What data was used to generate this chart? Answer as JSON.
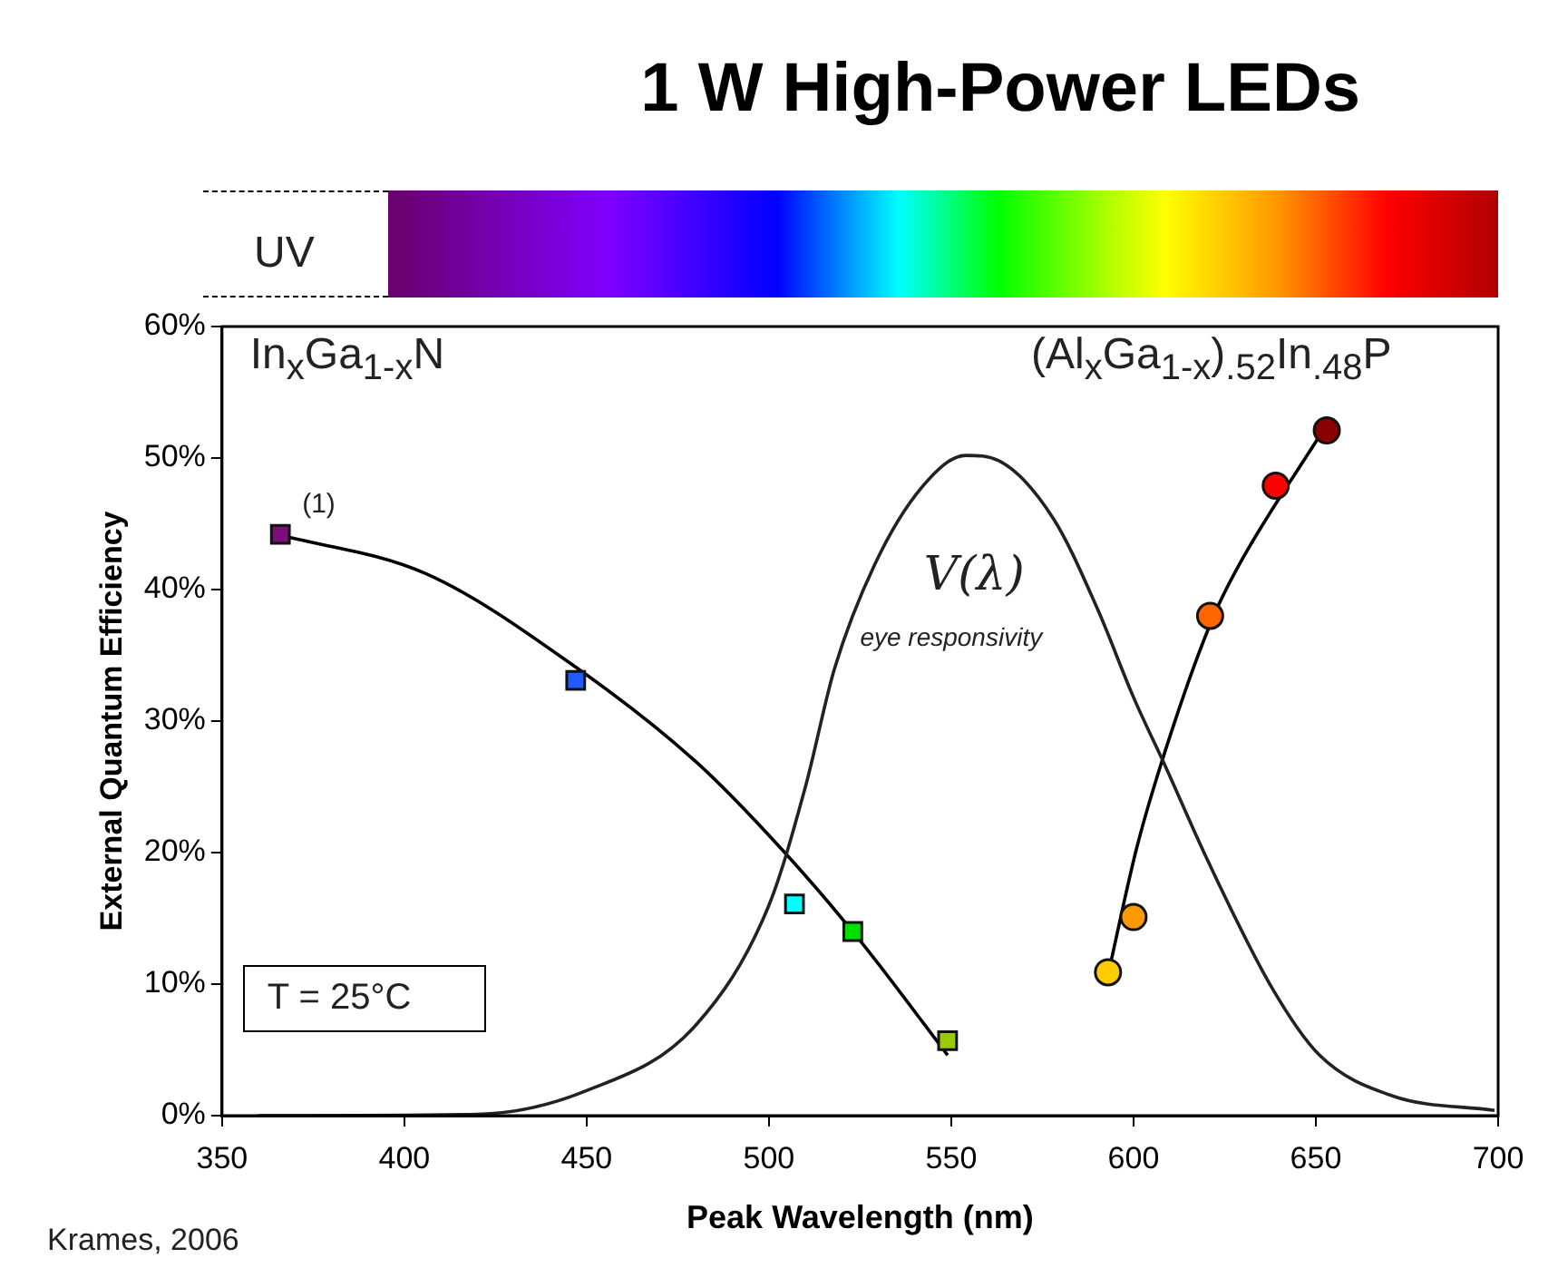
{
  "chart_data": {
    "type": "scatter",
    "title": "1 W High-Power LEDs",
    "xlabel": "Peak Wavelength (nm)",
    "ylabel": "External Quantum Efficiency",
    "xlim": [
      350,
      700
    ],
    "xticks": [
      350,
      400,
      450,
      500,
      550,
      600,
      650,
      700
    ],
    "ylim": [
      0,
      60
    ],
    "yticks": [
      {
        "value": 0,
        "label": "0%"
      },
      {
        "value": 10,
        "label": "10%"
      },
      {
        "value": 20,
        "label": "20%"
      },
      {
        "value": 30,
        "label": "30%"
      },
      {
        "value": 40,
        "label": "40%"
      },
      {
        "value": 50,
        "label": "50%"
      },
      {
        "value": 60,
        "label": "60%"
      }
    ],
    "grid": false,
    "legend": false,
    "series": [
      {
        "type": "line",
        "marker": "none",
        "color": "#222222",
        "x": [
          360,
          420,
          450,
          480,
          500,
          510,
          518,
          529,
          542,
          554,
          563,
          578,
          590,
          600,
          609,
          620,
          638,
          651,
          671,
          699
        ],
        "values": [
          0,
          0.1,
          1.9,
          6.9,
          16,
          25,
          34,
          41.9,
          47.8,
          50.2,
          49.8,
          45.4,
          38.6,
          31.8,
          26.4,
          19.6,
          9.7,
          4.6,
          1.5,
          0.4
        ]
      },
      {
        "type": "line",
        "marker": "none",
        "color": "#000000",
        "x": [
          365,
          406,
          447,
          480,
          504,
          525,
          549
        ],
        "values": [
          44.2,
          41.2,
          34.1,
          26.9,
          20.1,
          13.3,
          4.6
        ]
      },
      {
        "type": "line",
        "marker": "none",
        "color": "#000000",
        "x": [
          593,
          601,
          611,
          622,
          630,
          652
        ],
        "values": [
          10.7,
          20.5,
          29.7,
          38,
          42.4,
          52.1
        ]
      },
      {
        "type": "scatter",
        "marker": "square",
        "colors": [
          "#7a0f7a",
          "#1f5bff",
          "#00ffff",
          "#00e000",
          "#99cc00"
        ],
        "x": [
          366,
          447,
          507,
          523,
          549
        ],
        "values": [
          44.2,
          33.1,
          16.1,
          14,
          5.7
        ]
      },
      {
        "type": "scatter",
        "marker": "circle",
        "colors": [
          "#ffcc00",
          "#ff9900",
          "#ff6600",
          "#ff0000",
          "#8b0000"
        ],
        "x": [
          593,
          600,
          621,
          639,
          653
        ],
        "values": [
          10.9,
          15.1,
          38,
          47.9,
          52.1
        ]
      }
    ],
    "annotations": [
      "In$_{x}$Ga$_{1-x}$N",
      "(Al$_{x}$Ga$_{1-x}$)$_{.52}$In$_{.48}$P",
      {
        "text": "(1)",
        "x": 366,
        "y": 44.2
      },
      "V(λ)",
      "eye responsivity",
      "T = 25°C",
      "UV",
      "Krames, 2006"
    ]
  }
}
